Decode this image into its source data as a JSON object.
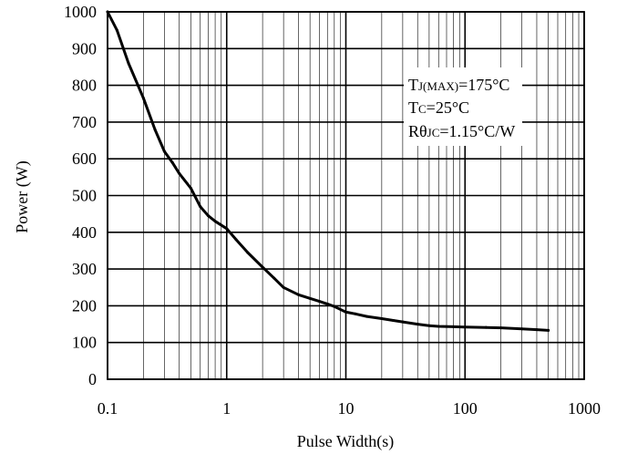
{
  "chart_data": {
    "type": "line",
    "title": "",
    "xlabel": "Pulse Width(s)",
    "ylabel": "Power (W)",
    "x_scale": "log",
    "xlim": [
      0.1,
      1000
    ],
    "ylim": [
      0,
      1000
    ],
    "x_ticks": [
      "0.1",
      "1",
      "10",
      "100",
      "1000"
    ],
    "y_ticks": [
      "0",
      "100",
      "200",
      "300",
      "400",
      "500",
      "600",
      "700",
      "800",
      "900",
      "1000"
    ],
    "grid": true,
    "series": [
      {
        "name": "",
        "x": [
          0.1,
          0.12,
          0.15,
          0.18,
          0.2,
          0.25,
          0.3,
          0.35,
          0.4,
          0.5,
          0.6,
          0.7,
          0.8,
          1.0,
          1.2,
          1.5,
          2.0,
          2.5,
          3.0,
          4.0,
          5.0,
          6.0,
          7.0,
          8.0,
          10,
          12,
          15,
          20,
          25,
          30,
          40,
          50,
          60,
          80,
          100,
          150,
          200,
          300,
          400,
          500
        ],
        "y": [
          1000,
          950,
          860,
          800,
          765,
          680,
          620,
          590,
          560,
          520,
          470,
          445,
          430,
          410,
          380,
          345,
          305,
          275,
          250,
          230,
          220,
          212,
          205,
          198,
          183,
          178,
          171,
          165,
          160,
          156,
          150,
          146,
          144,
          143,
          142,
          141,
          140,
          137,
          135,
          133
        ]
      }
    ],
    "annotations": [
      {
        "main": "T",
        "sub": "J(MAX)",
        "rest": "=175°C"
      },
      {
        "main": "T",
        "sub": "C",
        "rest": "=25°C"
      },
      {
        "main": "Rθ",
        "sub": "JC",
        "rest": "=1.15°C/W"
      }
    ],
    "colors": {
      "line": "#000000",
      "grid": "#000000",
      "background": "#ffffff"
    }
  }
}
